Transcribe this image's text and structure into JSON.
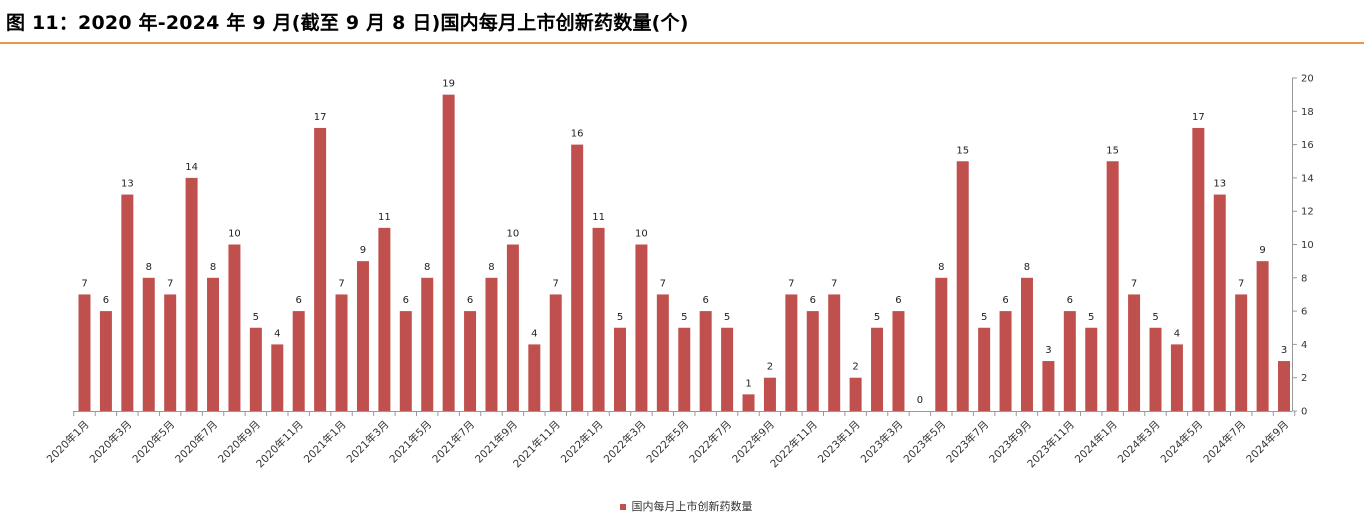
{
  "figure": {
    "title": "图 11：2020 年-2024 年 9 月(截至 9 月 8 日)国内每月上市创新药数量(个)"
  },
  "chart_data": {
    "type": "bar",
    "categories": [
      "2020年1月",
      "2020年2月",
      "2020年3月",
      "2020年4月",
      "2020年5月",
      "2020年6月",
      "2020年7月",
      "2020年8月",
      "2020年9月",
      "2020年10月",
      "2020年11月",
      "2020年12月",
      "2021年1月",
      "2021年2月",
      "2021年3月",
      "2021年4月",
      "2021年5月",
      "2021年6月",
      "2021年7月",
      "2021年8月",
      "2021年9月",
      "2021年10月",
      "2021年11月",
      "2021年12月",
      "2022年1月",
      "2022年2月",
      "2022年3月",
      "2022年4月",
      "2022年5月",
      "2022年6月",
      "2022年7月",
      "2022年8月",
      "2022年9月",
      "2022年10月",
      "2022年11月",
      "2022年12月",
      "2023年1月",
      "2023年2月",
      "2023年3月",
      "2023年4月",
      "2023年5月",
      "2023年6月",
      "2023年7月",
      "2023年8月",
      "2023年9月",
      "2023年10月",
      "2023年11月",
      "2023年12月",
      "2024年1月",
      "2024年2月",
      "2024年3月",
      "2024年4月",
      "2024年5月",
      "2024年6月",
      "2024年7月",
      "2024年8月",
      "2024年9月"
    ],
    "x_tick_labels": [
      "2020年1月",
      "2020年3月",
      "2020年5月",
      "2020年7月",
      "2020年9月",
      "2020年11月",
      "2021年1月",
      "2021年3月",
      "2021年5月",
      "2021年7月",
      "2021年9月",
      "2021年11月",
      "2022年1月",
      "2022年3月",
      "2022年5月",
      "2022年7月",
      "2022年9月",
      "2022年11月",
      "2023年1月",
      "2023年3月",
      "2023年5月",
      "2023年7月",
      "2023年9月",
      "2023年11月",
      "2024年1月",
      "2024年3月",
      "2024年5月",
      "2024年7月",
      "2024年9月"
    ],
    "series": [
      {
        "name": "国内每月上市创新药数量",
        "color": "#c0504d",
        "values": [
          7,
          6,
          13,
          8,
          7,
          14,
          8,
          10,
          5,
          4,
          6,
          17,
          7,
          9,
          11,
          6,
          8,
          19,
          6,
          8,
          10,
          4,
          7,
          16,
          11,
          5,
          10,
          7,
          5,
          6,
          5,
          1,
          2,
          7,
          6,
          7,
          2,
          5,
          6,
          null,
          8,
          15,
          5,
          6,
          8,
          3,
          6,
          5,
          15,
          7,
          5,
          4,
          17,
          13,
          7,
          9,
          3
        ]
      }
    ],
    "data_labels": [
      "7",
      "6",
      "13",
      "8",
      "7",
      "14",
      "8",
      "10",
      "5",
      "4",
      "6",
      "17",
      "7",
      "9",
      "11",
      "6",
      "8",
      "19",
      "6",
      "8",
      "10",
      "4",
      "7",
      "16",
      "11",
      "5",
      "10",
      "7",
      "5",
      "6",
      "5",
      "1",
      "2",
      "7",
      "6",
      "7",
      "2",
      "5",
      "6",
      "0",
      "8",
      "15",
      "5",
      "6",
      "8",
      "3",
      "6",
      "5",
      "15",
      "7",
      "5",
      "4",
      "17",
      "13",
      "7",
      "9",
      "3"
    ],
    "y_ticks": [
      "0",
      "2",
      "4",
      "6",
      "8",
      "10",
      "12",
      "14",
      "16",
      "18",
      "20"
    ],
    "ylim": [
      0,
      20
    ],
    "y_axis_side": "right",
    "grid": false,
    "legend": {
      "position": "bottom",
      "entries": [
        "国内每月上市创新药数量"
      ]
    }
  }
}
